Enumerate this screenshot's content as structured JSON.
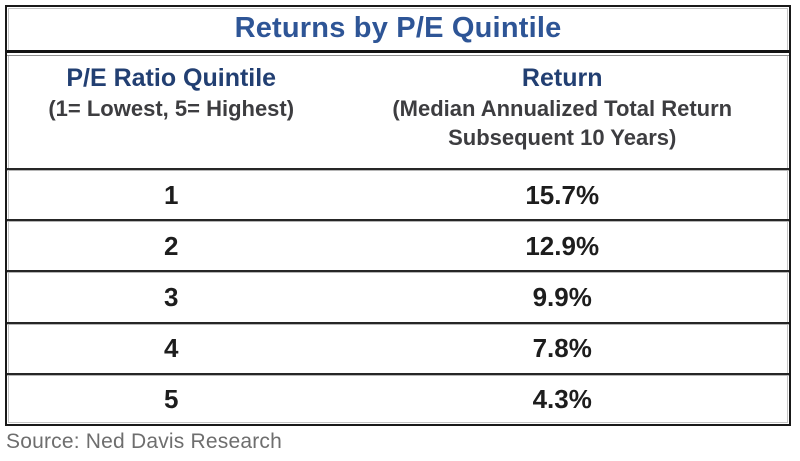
{
  "figure": {
    "title": "Returns by P/E Quintile",
    "columns": {
      "left_header": "P/E Ratio Quintile",
      "left_subheader": "(1= Lowest, 5= Highest)",
      "right_header": "Return",
      "right_subheader": "(Median Annualized Total Return Subsequent 10 Years)"
    },
    "rows": [
      {
        "quintile": "1",
        "return": "15.7%"
      },
      {
        "quintile": "2",
        "return": "12.9%"
      },
      {
        "quintile": "3",
        "return": "9.9%"
      },
      {
        "quintile": "4",
        "return": "7.8%"
      },
      {
        "quintile": "5",
        "return": "4.3%"
      }
    ],
    "source": "Source: Ned Davis Research"
  },
  "colors": {
    "title_blue": "#2e5596",
    "header_blue": "#223f72",
    "subheader_gray": "#3d3d40",
    "value_black": "#1d1d1d",
    "source_gray": "#6e6e6e",
    "border_black": "#191919"
  },
  "chart_data": {
    "type": "table",
    "title": "Returns by P/E Quintile",
    "columns": [
      "P/E Ratio Quintile (1= Lowest, 5= Highest)",
      "Return (Median Annualized Total Return Subsequent 10 Years)"
    ],
    "categories": [
      "1",
      "2",
      "3",
      "4",
      "5"
    ],
    "values": [
      15.7,
      12.9,
      9.9,
      7.8,
      4.3
    ],
    "units": "%",
    "source": "Source: Ned Davis Research"
  }
}
